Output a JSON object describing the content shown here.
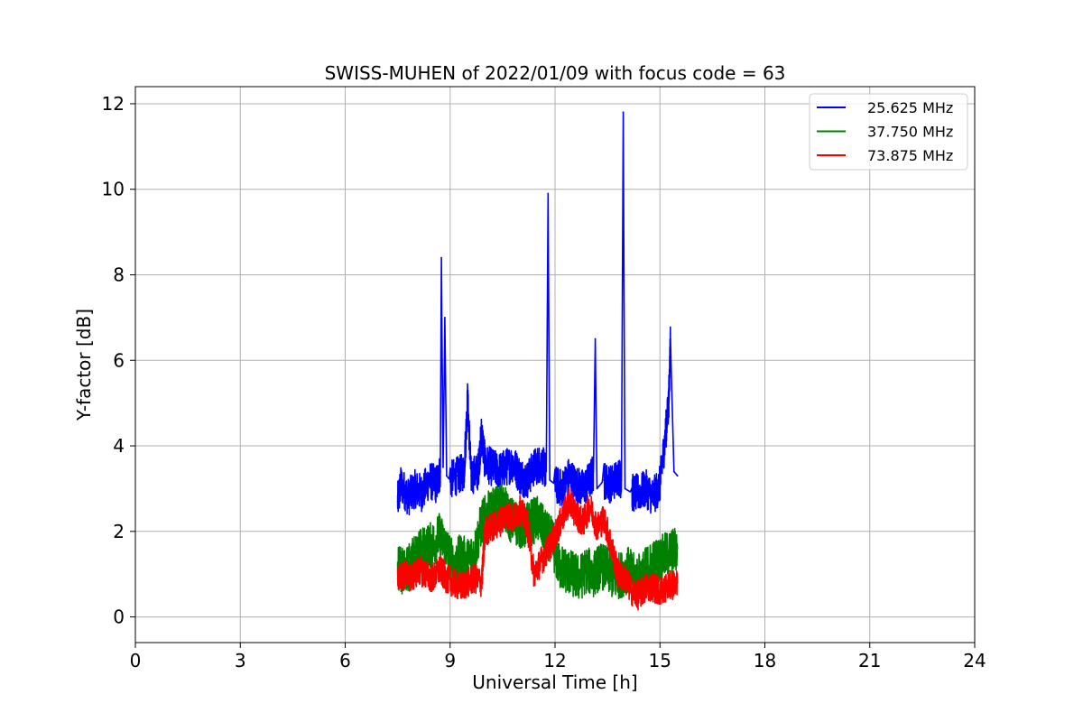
{
  "chart_data": {
    "type": "line",
    "title": "SWISS-MUHEN of 2022/01/09 with focus code = 63",
    "xlabel": "Universal Time [h]",
    "ylabel": "Y-factor [dB]",
    "xlim": [
      0,
      24
    ],
    "ylim": [
      -0.6,
      12.4
    ],
    "xticks": [
      0,
      3,
      6,
      9,
      12,
      15,
      18,
      21,
      24
    ],
    "yticks": [
      0,
      2,
      4,
      6,
      8,
      10,
      12
    ],
    "xtick_labels": [
      "0",
      "3",
      "6",
      "9",
      "12",
      "15",
      "18",
      "21",
      "24"
    ],
    "ytick_labels": [
      "0",
      "2",
      "4",
      "6",
      "8",
      "10",
      "12"
    ],
    "grid": true,
    "legend_position": "top-right",
    "series": [
      {
        "name": "25.625 MHz",
        "color": "#0000ff",
        "x": [
          7.5,
          7.6,
          7.8,
          8.0,
          8.2,
          8.4,
          8.6,
          8.72,
          8.75,
          8.8,
          8.85,
          8.9,
          9.0,
          9.2,
          9.4,
          9.5,
          9.6,
          9.8,
          9.9,
          10.0,
          10.2,
          10.4,
          10.6,
          10.8,
          11.0,
          11.2,
          11.4,
          11.6,
          11.75,
          11.8,
          11.85,
          12.0,
          12.2,
          12.4,
          12.6,
          12.8,
          13.0,
          13.1,
          13.15,
          13.2,
          13.4,
          13.6,
          13.8,
          13.9,
          13.95,
          14.0,
          14.2,
          14.4,
          14.6,
          14.8,
          15.0,
          15.15,
          15.25,
          15.3,
          15.4,
          15.5
        ],
        "y": [
          2.7,
          3.1,
          2.8,
          3.0,
          2.9,
          3.2,
          3.1,
          3.4,
          8.4,
          3.5,
          7.0,
          3.3,
          3.2,
          3.3,
          3.4,
          5.1,
          3.3,
          3.4,
          4.3,
          3.6,
          3.5,
          3.4,
          3.5,
          3.6,
          3.3,
          3.2,
          3.5,
          3.6,
          3.4,
          9.9,
          3.2,
          3.1,
          3.0,
          3.3,
          3.1,
          3.0,
          3.2,
          3.4,
          6.5,
          3.0,
          3.2,
          3.1,
          3.3,
          3.2,
          11.8,
          3.0,
          2.9,
          2.9,
          3.0,
          2.8,
          3.1,
          4.2,
          5.0,
          6.5,
          3.4,
          3.3
        ]
      },
      {
        "name": "37.750 MHz",
        "color": "#008000",
        "x": [
          7.5,
          7.7,
          7.9,
          8.1,
          8.3,
          8.5,
          8.7,
          8.9,
          9.1,
          9.3,
          9.5,
          9.7,
          9.9,
          10.1,
          10.3,
          10.5,
          10.7,
          10.9,
          11.1,
          11.3,
          11.5,
          11.7,
          11.9,
          12.1,
          12.3,
          12.5,
          12.7,
          12.9,
          13.1,
          13.3,
          13.5,
          13.7,
          13.9,
          14.1,
          14.3,
          14.5,
          14.7,
          14.9,
          15.1,
          15.3,
          15.5
        ],
        "y": [
          1.2,
          1.0,
          1.3,
          1.5,
          1.6,
          1.7,
          1.9,
          1.6,
          1.2,
          1.4,
          1.3,
          1.5,
          2.2,
          2.4,
          2.5,
          2.6,
          2.3,
          2.2,
          2.1,
          2.2,
          2.3,
          2.0,
          1.8,
          1.2,
          1.1,
          1.0,
          0.9,
          1.1,
          1.0,
          1.2,
          1.1,
          0.9,
          1.0,
          1.1,
          0.9,
          1.0,
          1.2,
          1.3,
          1.4,
          1.5,
          1.6
        ]
      },
      {
        "name": "73.875 MHz",
        "color": "#ff0000",
        "x": [
          7.5,
          7.7,
          7.9,
          8.1,
          8.3,
          8.5,
          8.7,
          8.9,
          9.1,
          9.3,
          9.5,
          9.7,
          9.9,
          10.0,
          10.2,
          10.4,
          10.6,
          10.8,
          11.0,
          11.2,
          11.4,
          11.6,
          11.8,
          12.0,
          12.2,
          12.4,
          12.6,
          12.8,
          13.0,
          13.2,
          13.4,
          13.6,
          13.8,
          14.0,
          14.2,
          14.4,
          14.6,
          14.8,
          15.0,
          15.2,
          15.5
        ],
        "y": [
          0.9,
          1.0,
          0.9,
          1.1,
          1.0,
          0.9,
          1.1,
          0.9,
          0.8,
          0.7,
          0.8,
          0.9,
          0.8,
          2.0,
          2.1,
          2.2,
          2.4,
          2.3,
          2.5,
          2.2,
          1.0,
          1.3,
          1.6,
          1.9,
          2.3,
          2.7,
          2.4,
          2.2,
          2.6,
          2.1,
          2.3,
          1.7,
          1.0,
          0.9,
          0.6,
          0.5,
          0.7,
          0.7,
          0.6,
          0.7,
          0.8
        ]
      }
    ]
  }
}
